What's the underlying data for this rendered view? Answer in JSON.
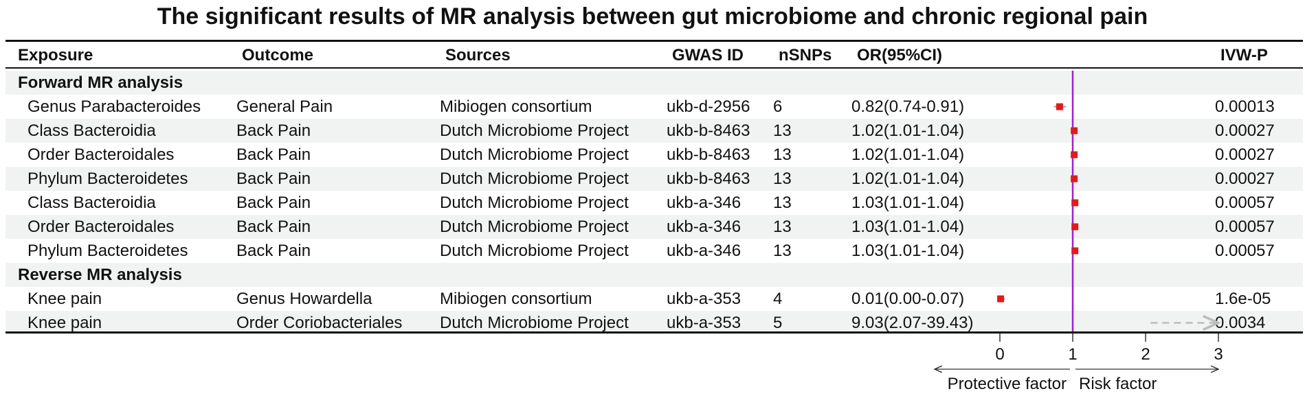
{
  "title": "The significant results of MR analysis between gut microbiome and chronic regional pain",
  "headers": {
    "exposure": "Exposure",
    "outcome": "Outcome",
    "sources": "Sources",
    "gwas_id": "GWAS ID",
    "nsnps": "nSNPs",
    "or_ci": "OR(95%CI)",
    "ivw_p": "IVW-P"
  },
  "sections": [
    {
      "label": "Forward MR analysis",
      "rows": [
        {
          "exposure": "Genus Parabacteroides",
          "outcome": "General Pain",
          "sources": "Mibiogen consortium",
          "gwas_id": "ukb-d-2956",
          "nsnps": "6",
          "or_text": "0.82(0.74-0.91)",
          "ivw_p": "0.00013"
        },
        {
          "exposure": "Class Bacteroidia",
          "outcome": "Back Pain",
          "sources": "Dutch Microbiome Project",
          "gwas_id": "ukb-b-8463",
          "nsnps": "13",
          "or_text": "1.02(1.01-1.04)",
          "ivw_p": "0.00027"
        },
        {
          "exposure": "Order Bacteroidales",
          "outcome": "Back Pain",
          "sources": "Dutch Microbiome Project",
          "gwas_id": "ukb-b-8463",
          "nsnps": "13",
          "or_text": "1.02(1.01-1.04)",
          "ivw_p": "0.00027"
        },
        {
          "exposure": "Phylum Bacteroidetes",
          "outcome": "Back Pain",
          "sources": "Dutch Microbiome Project",
          "gwas_id": "ukb-b-8463",
          "nsnps": "13",
          "or_text": "1.02(1.01-1.04)",
          "ivw_p": "0.00027"
        },
        {
          "exposure": "Class Bacteroidia",
          "outcome": "Back Pain",
          "sources": "Dutch Microbiome Project",
          "gwas_id": "ukb-a-346",
          "nsnps": "13",
          "or_text": "1.03(1.01-1.04)",
          "ivw_p": "0.00057"
        },
        {
          "exposure": "Order Bacteroidales",
          "outcome": "Back Pain",
          "sources": "Dutch Microbiome Project",
          "gwas_id": "ukb-a-346",
          "nsnps": "13",
          "or_text": "1.03(1.01-1.04)",
          "ivw_p": "0.00057"
        },
        {
          "exposure": "Phylum  Bacteroidetes",
          "outcome": "Back Pain",
          "sources": "Dutch Microbiome Project",
          "gwas_id": "ukb-a-346",
          "nsnps": "13",
          "or_text": "1.03(1.01-1.04)",
          "ivw_p": "0.00057"
        }
      ]
    },
    {
      "label": "Reverse MR analysis",
      "rows": [
        {
          "exposure": "Knee pain",
          "outcome": "Genus Howardella",
          "sources": "Mibiogen consortium",
          "gwas_id": "ukb-a-353",
          "nsnps": "4",
          "or_text": "0.01(0.00-0.07)",
          "ivw_p": "1.6e-05"
        },
        {
          "exposure": "Knee pain",
          "outcome": "Order Coriobacteriales",
          "sources": "Dutch Microbiome Project",
          "gwas_id": "ukb-a-353",
          "nsnps": "5",
          "or_text": "9.03(2.07-39.43)",
          "ivw_p": "0.0034"
        }
      ]
    }
  ],
  "chart_data": {
    "type": "scatter",
    "subtype": "forest-plot",
    "xlim": [
      0,
      3
    ],
    "x_ticks": [
      "0",
      "1",
      "2",
      "3"
    ],
    "reference_line": {
      "x": 1,
      "color": "#a020d0"
    },
    "point_color": "#e01b1b",
    "ci_color": "#bbbbbb",
    "points": [
      {
        "or": 0.82,
        "lo": 0.74,
        "hi": 0.91
      },
      {
        "or": 1.02,
        "lo": 1.01,
        "hi": 1.04
      },
      {
        "or": 1.02,
        "lo": 1.01,
        "hi": 1.04
      },
      {
        "or": 1.02,
        "lo": 1.01,
        "hi": 1.04
      },
      {
        "or": 1.03,
        "lo": 1.01,
        "hi": 1.04
      },
      {
        "or": 1.03,
        "lo": 1.01,
        "hi": 1.04
      },
      {
        "or": 1.03,
        "lo": 1.01,
        "hi": 1.04
      },
      {
        "or": 0.01,
        "lo": 0.0,
        "hi": 0.07
      },
      {
        "or": 9.03,
        "lo": 2.07,
        "hi": 39.43,
        "truncated": true
      }
    ],
    "direction_labels": {
      "left": "Protective factor",
      "right": "Risk factor"
    }
  }
}
